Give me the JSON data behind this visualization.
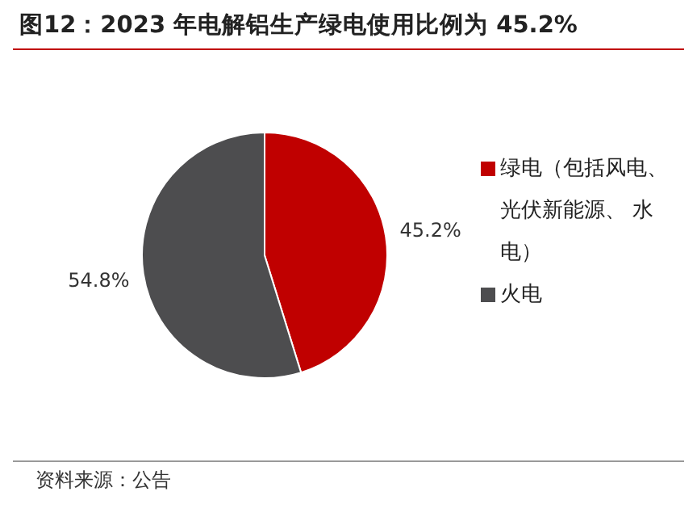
{
  "chart_data": {
    "type": "pie",
    "title": "图12：2023 年电解铝生产绿电使用比例为 45.2%",
    "categories": [
      "绿电（包括风电、光伏新能源、 水电）",
      "火电"
    ],
    "values": [
      45.2,
      54.8
    ],
    "colors": [
      "#c00000",
      "#4d4d4f"
    ],
    "value_labels": [
      "45.2%",
      "54.8%"
    ],
    "legend": "right",
    "annotations": [
      "资料来源：公告"
    ]
  }
}
